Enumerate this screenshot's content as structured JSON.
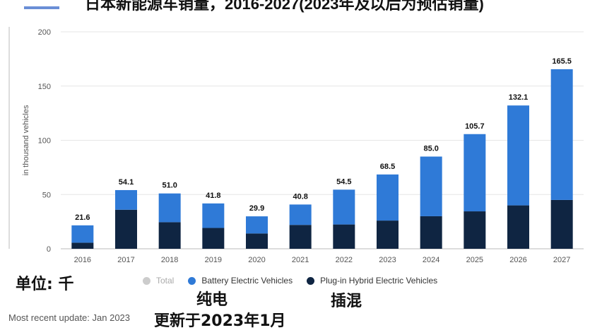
{
  "title": "日本新能源车销量，2016-2027(2023年及以后为预估销量)",
  "chart_data": {
    "type": "bar",
    "stacked": true,
    "categories": [
      "2016",
      "2017",
      "2018",
      "2019",
      "2020",
      "2021",
      "2022",
      "2023",
      "2024",
      "2025",
      "2026",
      "2027"
    ],
    "ylabel": "in thousand vehicles",
    "ylim": [
      0,
      200
    ],
    "yticks": [
      0,
      50,
      100,
      150,
      200
    ],
    "grid": true,
    "series": [
      {
        "name": "Plug-in Hybrid Electric Vehicles",
        "color": "#0f2542",
        "values": [
          5.6,
          36.0,
          24.5,
          19.2,
          14.1,
          22.0,
          22.4,
          26.0,
          30.0,
          34.5,
          40.0,
          45.0
        ]
      },
      {
        "name": "Battery Electric Vehicles",
        "color": "#2f7ad7",
        "values": [
          16.0,
          18.1,
          26.5,
          22.6,
          15.8,
          18.8,
          32.1,
          42.5,
          55.0,
          71.2,
          92.1,
          120.5
        ]
      }
    ],
    "totals": [
      "21.6",
      "54.1",
      "51.0",
      "41.8",
      "29.9",
      "40.8",
      "54.5",
      "68.5",
      "85.0",
      "105.7",
      "132.1",
      "165.5"
    ],
    "legend_position": "bottom"
  },
  "legend": {
    "total": "Total",
    "total_color": "#cccccc",
    "bev": "Battery Electric Vehicles",
    "phev": "Plug-in Hybrid Electric Vehicles"
  },
  "annotations": {
    "unit": "单位: 千",
    "bev_cn": "纯电",
    "phev_cn": "插混",
    "update_cn": "更新于2023年1月"
  },
  "footer": "Most recent update: Jan 2023"
}
